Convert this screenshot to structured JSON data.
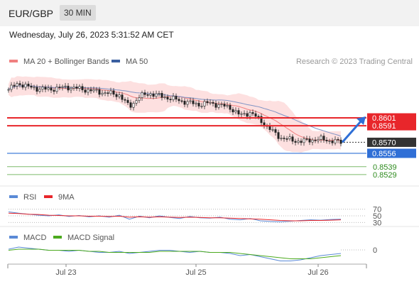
{
  "header": {
    "pair": "EUR/GBP",
    "timeframe": "30 MIN",
    "datetime": "Wednesday, July 26, 2023 5:31:52 AM CET"
  },
  "chart_data": [
    {
      "type": "candlestick",
      "legend": [
        {
          "label": "MA 20 + Bollinger Bands",
          "color": "#f08080"
        },
        {
          "label": "MA 50",
          "color": "#3a5fa0"
        }
      ],
      "credit": "Research © 2023 Trading Central",
      "levels": [
        {
          "value": 0.8601,
          "label": "0.8601",
          "color": "#e8262b",
          "style": "box"
        },
        {
          "value": 0.8591,
          "label": "0.8591",
          "color": "#e8262b",
          "style": "box"
        },
        {
          "value": 0.857,
          "label": "0.8570",
          "color": "#333333",
          "style": "box"
        },
        {
          "value": 0.8556,
          "label": "0.8556",
          "color": "#2f6fd6",
          "style": "box"
        },
        {
          "value": 0.8539,
          "label": "0.8539",
          "color": "#2e8b1e",
          "style": "text"
        },
        {
          "value": 0.8529,
          "label": "0.8529",
          "color": "#2e8b1e",
          "style": "text"
        }
      ],
      "ylim": [
        0.8519,
        0.8665
      ],
      "price_path": [
        0.8637,
        0.8645,
        0.864,
        0.8638,
        0.8637,
        0.8639,
        0.864,
        0.8638,
        0.8636,
        0.8634,
        0.8632,
        0.863,
        0.8615,
        0.8628,
        0.8632,
        0.8629,
        0.8626,
        0.8623,
        0.862,
        0.8618,
        0.862,
        0.8617,
        0.8614,
        0.8604,
        0.8608,
        0.8598,
        0.8586,
        0.8576,
        0.8573,
        0.8571,
        0.8573,
        0.8574,
        0.8572,
        0.857
      ],
      "projection": {
        "from": 0.857,
        "to": 0.8601
      }
    },
    {
      "type": "line",
      "legend": [
        {
          "label": "RSI",
          "color": "#5a8ad6"
        },
        {
          "label": "9MA",
          "color": "#e8262b"
        }
      ],
      "levels": [
        "70",
        "50",
        "30"
      ],
      "ylim": [
        20,
        80
      ],
      "series": [
        {
          "name": "RSI",
          "values": [
            62,
            58,
            55,
            52,
            50,
            53,
            48,
            51,
            47,
            50,
            46,
            52,
            40,
            49,
            44,
            50,
            45,
            42,
            48,
            44,
            43,
            46,
            40,
            38,
            42,
            35,
            33,
            32,
            34,
            36,
            38,
            37,
            39,
            40
          ]
        },
        {
          "name": "9MA",
          "values": [
            58,
            57,
            55,
            54,
            52,
            51,
            50,
            50,
            49,
            49,
            48,
            49,
            46,
            47,
            46,
            47,
            46,
            45,
            46,
            45,
            44,
            44,
            43,
            42,
            41,
            40,
            38,
            36,
            35,
            35,
            36,
            36,
            37,
            38
          ]
        }
      ]
    },
    {
      "type": "line",
      "legend": [
        {
          "label": "MACD",
          "color": "#5a8ad6"
        },
        {
          "label": "MACD Signal",
          "color": "#4caa1e"
        }
      ],
      "levels": [
        "0"
      ],
      "ylim": [
        -0.0012,
        0.0008
      ],
      "x_ticks": [
        "Jul 23",
        "Jul 25",
        "Jul 26"
      ],
      "series": [
        {
          "name": "MACD",
          "values": [
            0.0002,
            0.0004,
            0.0003,
            0.0002,
            0.0001,
            0.0001,
            0.0,
            0.0001,
            0.0,
            -0.0001,
            -0.0001,
            0.0,
            -0.0002,
            -0.0001,
            0.0,
            0.0001,
            0.0001,
            0.0,
            -0.0001,
            0.0,
            -0.0001,
            -0.0001,
            -0.0002,
            -0.0004,
            -0.0003,
            -0.0005,
            -0.0007,
            -0.0009,
            -0.0009,
            -0.0008,
            -0.0006,
            -0.0004,
            -0.0003,
            -0.0002
          ]
        },
        {
          "name": "MACD Signal",
          "values": [
            0.0001,
            0.0002,
            0.0002,
            0.0002,
            0.0001,
            0.0001,
            0.0001,
            0.0001,
            0.0,
            0.0,
            -0.0001,
            -0.0001,
            -0.0001,
            -0.0001,
            -0.0001,
            0.0,
            0.0,
            0.0,
            0.0,
            0.0,
            -0.0001,
            -0.0001,
            -0.0001,
            -0.0002,
            -0.0003,
            -0.0004,
            -0.0005,
            -0.0006,
            -0.0007,
            -0.0007,
            -0.0007,
            -0.0006,
            -0.0005,
            -0.0004
          ]
        }
      ]
    }
  ]
}
